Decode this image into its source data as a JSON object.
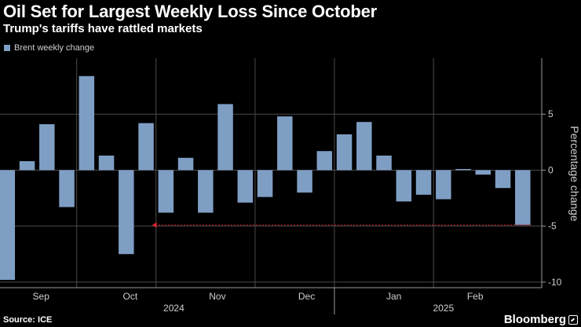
{
  "header": {
    "title": "Oil Set for Largest Weekly Loss Since October",
    "subtitle": "Trump's tariffs have rattled markets"
  },
  "footer": {
    "source": "Source: ICE",
    "brand": "Bloomberg"
  },
  "colors": {
    "bar": "#7f9ec4",
    "grid": "#4a4a4a",
    "annotation": "#d9232d"
  },
  "chart_data": {
    "type": "bar",
    "title": "Oil Set for Largest Weekly Loss Since October",
    "subtitle": "Trump's tariffs have rattled markets",
    "legend": [
      "Brent weekly change"
    ],
    "legend_position": "top-left",
    "ylabel": "Percentage change",
    "ylim": [
      -10.5,
      10
    ],
    "yticks": [
      5,
      0,
      -5,
      -10
    ],
    "grid": true,
    "series": [
      {
        "name": "Brent weekly change",
        "values": [
          -9.8,
          0.8,
          4.1,
          -3.3,
          8.4,
          1.3,
          -7.5,
          4.2,
          -3.8,
          1.1,
          -3.8,
          5.9,
          -2.9,
          -2.4,
          4.8,
          -2.0,
          1.7,
          3.2,
          4.3,
          1.3,
          -2.8,
          -2.2,
          -2.6,
          0.1,
          -0.4,
          -1.6,
          -4.9
        ]
      }
    ],
    "month_labels": [
      {
        "label": "Sep",
        "week_index": 1.7
      },
      {
        "label": "Oct",
        "week_index": 6.2
      },
      {
        "label": "Nov",
        "week_index": 10.6
      },
      {
        "label": "Dec",
        "week_index": 15.1
      },
      {
        "label": "Jan",
        "week_index": 19.5
      },
      {
        "label": "Feb",
        "week_index": 23.6
      }
    ],
    "year_labels": [
      {
        "label": "2024",
        "week_index": 8.4
      },
      {
        "label": "2025",
        "week_index": 22.0
      }
    ],
    "year_divider_week_index": 17.0,
    "annotation": {
      "type": "arrow",
      "from_week_index": 26.4,
      "to_week_index": 7.3,
      "y_value": -4.9
    }
  }
}
